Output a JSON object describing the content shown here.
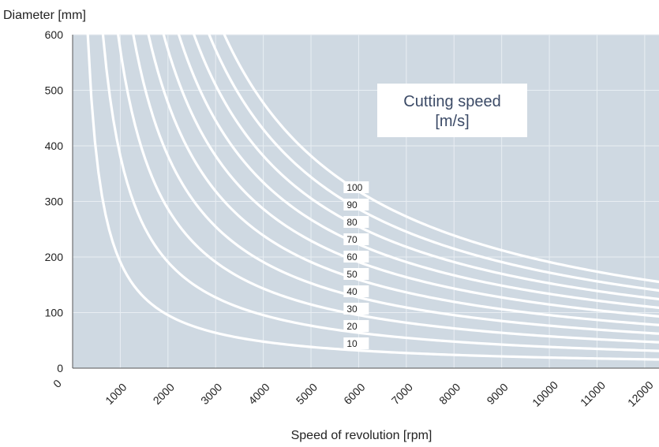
{
  "chart_data": {
    "type": "line",
    "title": "",
    "xlabel": "Speed of revolution [rpm]",
    "ylabel": "Diameter [mm]",
    "xlim": [
      0,
      12000
    ],
    "ylim": [
      0,
      600
    ],
    "x_ticks": [
      "0",
      "1000",
      "2000",
      "3000",
      "4000",
      "5000",
      "6000",
      "7000",
      "8000",
      "9000",
      "10000",
      "11000",
      "12000"
    ],
    "y_ticks": [
      "0",
      "100",
      "200",
      "300",
      "400",
      "500",
      "600"
    ],
    "grid": true,
    "annotation": {
      "line1": "Cutting speed",
      "line2": "[m/s]"
    },
    "series_rule": "diameter_mm = 60000 * cutting_speed / (pi * rpm)",
    "series": [
      {
        "label": "10",
        "cutting_speed": 10,
        "x": [
          318,
          1000,
          2000,
          3000,
          4000,
          6000,
          8000,
          10000,
          12000
        ],
        "y": [
          600,
          191,
          95,
          64,
          48,
          32,
          24,
          19,
          16
        ]
      },
      {
        "label": "20",
        "cutting_speed": 20,
        "x": [
          637,
          1000,
          2000,
          3000,
          4000,
          6000,
          8000,
          10000,
          12000
        ],
        "y": [
          600,
          382,
          191,
          127,
          95,
          64,
          48,
          38,
          32
        ]
      },
      {
        "label": "30",
        "cutting_speed": 30,
        "x": [
          955,
          2000,
          3000,
          4000,
          6000,
          8000,
          10000,
          12000
        ],
        "y": [
          600,
          286,
          191,
          143,
          95,
          72,
          57,
          48
        ]
      },
      {
        "label": "40",
        "cutting_speed": 40,
        "x": [
          1273,
          2000,
          3000,
          4000,
          6000,
          8000,
          10000,
          12000
        ],
        "y": [
          600,
          382,
          255,
          191,
          127,
          95,
          76,
          64
        ]
      },
      {
        "label": "50",
        "cutting_speed": 50,
        "x": [
          1592,
          2000,
          3000,
          4000,
          6000,
          8000,
          10000,
          12000
        ],
        "y": [
          600,
          477,
          318,
          239,
          159,
          119,
          95,
          80
        ]
      },
      {
        "label": "60",
        "cutting_speed": 60,
        "x": [
          1910,
          3000,
          4000,
          6000,
          8000,
          10000,
          12000
        ],
        "y": [
          600,
          382,
          286,
          191,
          143,
          115,
          95
        ]
      },
      {
        "label": "70",
        "cutting_speed": 70,
        "x": [
          2228,
          3000,
          4000,
          6000,
          8000,
          10000,
          12000
        ],
        "y": [
          600,
          446,
          334,
          223,
          167,
          134,
          111
        ]
      },
      {
        "label": "80",
        "cutting_speed": 80,
        "x": [
          2546,
          3000,
          4000,
          6000,
          8000,
          10000,
          12000
        ],
        "y": [
          600,
          509,
          382,
          255,
          191,
          153,
          127
        ]
      },
      {
        "label": "90",
        "cutting_speed": 90,
        "x": [
          2865,
          4000,
          6000,
          8000,
          10000,
          12000
        ],
        "y": [
          600,
          430,
          286,
          215,
          172,
          143
        ]
      },
      {
        "label": "100",
        "cutting_speed": 100,
        "x": [
          3183,
          4000,
          6000,
          8000,
          10000,
          12000
        ],
        "y": [
          600,
          477,
          318,
          239,
          191,
          159
        ]
      }
    ]
  },
  "colors": {
    "plot_background": "#cfd9e2",
    "grid": "#e8eef3",
    "curve": "#ffffff",
    "annotation_text": "#3b4a66"
  }
}
